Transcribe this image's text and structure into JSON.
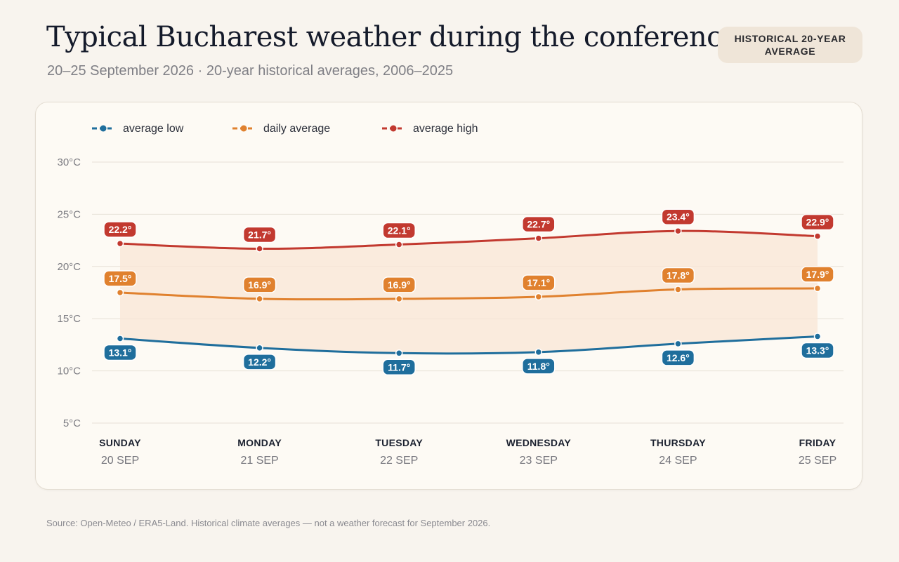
{
  "header": {
    "title": "Typical Bucharest weather during the conference",
    "subtitle": "20–25 September 2026 · 20-year historical averages, 2006–2025",
    "badge": "HISTORICAL 20-YEAR AVERAGE"
  },
  "footer": {
    "source": "Source: Open-Meteo / ERA5-Land. Historical climate averages — not a weather forecast for September 2026."
  },
  "chart_data": {
    "type": "line",
    "title": "Typical Bucharest weather during the conference",
    "subtitle": "20–25 September 2026 · 20-year historical averages, 2006–2025",
    "categories": [
      "SUNDAY",
      "MONDAY",
      "TUESDAY",
      "WEDNESDAY",
      "THURSDAY",
      "FRIDAY"
    ],
    "category_dates": [
      "20 SEP",
      "21 SEP",
      "22 SEP",
      "23 SEP",
      "24 SEP",
      "25 SEP"
    ],
    "y_ticks": [
      "30°C",
      "25°C",
      "20°C",
      "15°C",
      "10°C",
      "5°C"
    ],
    "ylim": [
      5,
      30
    ],
    "grid": true,
    "legend_position": "top-left",
    "band_between": [
      "average low",
      "average high"
    ],
    "series": [
      {
        "name": "average low",
        "color": "#1f6e9c",
        "values": [
          13.1,
          12.2,
          11.7,
          11.8,
          12.6,
          13.3
        ],
        "labels": [
          "13.1°",
          "12.2°",
          "11.7°",
          "11.8°",
          "12.6°",
          "13.3°"
        ],
        "label_position": "below"
      },
      {
        "name": "daily average",
        "color": "#e0812e",
        "values": [
          17.5,
          16.9,
          16.9,
          17.1,
          17.8,
          17.9
        ],
        "labels": [
          "17.5°",
          "16.9°",
          "16.9°",
          "17.1°",
          "17.8°",
          "17.9°"
        ],
        "label_position": "above"
      },
      {
        "name": "average high",
        "color": "#c2392f",
        "values": [
          22.2,
          21.7,
          22.1,
          22.7,
          23.4,
          22.9
        ],
        "labels": [
          "22.2°",
          "21.7°",
          "22.1°",
          "22.7°",
          "23.4°",
          "22.9°"
        ],
        "label_position": "above"
      }
    ],
    "band_color": "#f8e6d6"
  }
}
